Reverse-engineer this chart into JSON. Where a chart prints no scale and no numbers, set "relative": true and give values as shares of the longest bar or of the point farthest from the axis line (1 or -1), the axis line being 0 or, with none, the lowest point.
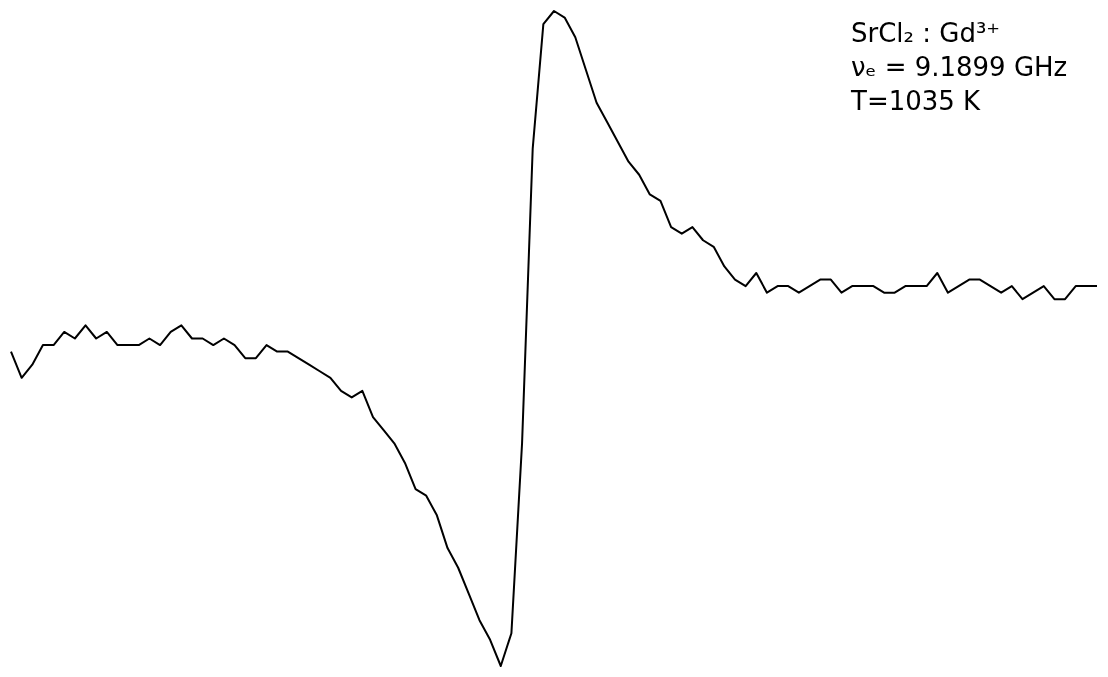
{
  "chart_data": {
    "type": "line",
    "relative": true,
    "color": "#000000",
    "annotations": [
      "SrCl₂ : Gd³⁺",
      "νₑ = 9.1899 GHz",
      "T=1035 K"
    ],
    "categories": [
      null,
      null,
      null,
      null,
      null,
      null,
      null,
      null,
      null,
      null,
      null,
      null,
      null,
      null,
      null,
      null,
      null,
      null,
      null,
      null,
      null,
      null,
      null,
      null,
      null,
      null,
      null,
      null,
      null,
      null,
      null,
      null,
      null,
      null,
      null,
      null,
      null,
      null,
      null,
      null,
      null,
      null,
      null,
      null,
      null,
      null,
      null,
      null,
      null,
      null,
      null,
      null,
      null,
      null,
      null,
      null,
      null,
      null,
      null,
      null,
      null,
      null,
      null,
      null,
      null,
      null,
      null,
      null,
      null,
      null,
      null,
      null,
      null,
      null,
      null,
      null,
      null,
      null,
      null,
      null,
      null,
      null,
      null,
      null,
      null,
      null,
      null,
      null,
      null,
      null,
      null,
      null,
      null,
      null,
      null,
      null,
      null,
      null,
      null,
      null,
      null,
      null,
      null
    ],
    "values": [
      0.48,
      0.44,
      0.46,
      0.49,
      0.49,
      0.51,
      0.5,
      0.52,
      0.5,
      0.51,
      0.49,
      0.49,
      0.49,
      0.5,
      0.49,
      0.51,
      0.52,
      0.5,
      0.5,
      0.49,
      0.5,
      0.49,
      0.47,
      0.47,
      0.49,
      0.48,
      0.48,
      0.47,
      0.46,
      0.45,
      0.44,
      0.42,
      0.41,
      0.42,
      0.38,
      0.36,
      0.34,
      0.31,
      0.27,
      0.26,
      0.23,
      0.18,
      0.15,
      0.11,
      0.07,
      0.04,
      0.0,
      0.05,
      0.34,
      0.79,
      0.98,
      1.0,
      0.99,
      0.96,
      0.91,
      0.86,
      0.83,
      0.8,
      0.77,
      0.75,
      0.72,
      0.71,
      0.67,
      0.66,
      0.67,
      0.65,
      0.64,
      0.61,
      0.59,
      0.58,
      0.6,
      0.57,
      0.58,
      0.58,
      0.57,
      0.58,
      0.59,
      0.59,
      0.57,
      0.58,
      0.58,
      0.58,
      0.57,
      0.57,
      0.58,
      0.58,
      0.58,
      0.6,
      0.57,
      0.58,
      0.59,
      0.59,
      0.58,
      0.57,
      0.58,
      0.56,
      0.57,
      0.58,
      0.56,
      0.56,
      0.58,
      0.58,
      0.58
    ]
  }
}
